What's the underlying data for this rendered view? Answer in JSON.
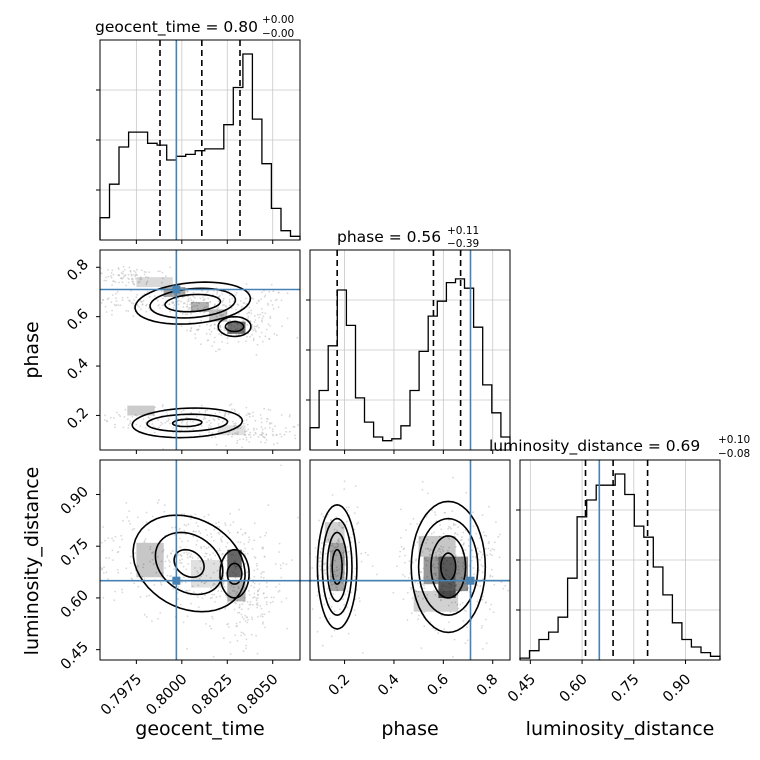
{
  "chart_data": {
    "type": "corner",
    "parameters": [
      "geocent_time",
      "phase",
      "luminosity_distance"
    ],
    "truth_color": "#4682b4",
    "axis_labels": {
      "x": [
        "geocent_time",
        "phase",
        "luminosity_distance"
      ],
      "y": [
        "phase",
        "luminosity_distance"
      ]
    },
    "titles": [
      {
        "param": "geocent_time",
        "prefix": "geocent_time = 0.80",
        "plus": "+0.00",
        "minus": "−0.00"
      },
      {
        "param": "phase",
        "prefix": "phase = 0.56",
        "plus": "+0.11",
        "minus": "−0.39"
      },
      {
        "param": "luminosity_distance",
        "prefix": "luminosity_distance = 0.69",
        "plus": "+0.10",
        "minus": "−0.08"
      }
    ],
    "ticks": {
      "geocent_time": {
        "values": [
          0.7975,
          0.8,
          0.8025,
          0.805
        ],
        "labels": [
          "0.7975",
          "0.8000",
          "0.8025",
          "0.8050"
        ]
      },
      "phase": {
        "values": [
          0.2,
          0.4,
          0.6,
          0.8
        ],
        "labels": [
          "0.2",
          "0.4",
          "0.6",
          "0.8"
        ]
      },
      "luminosity_distance": {
        "values": [
          0.45,
          0.6,
          0.75,
          0.9
        ],
        "labels": [
          "0.45",
          "0.60",
          "0.75",
          "0.90"
        ]
      }
    },
    "ranges": {
      "geocent_time": [
        0.7955,
        0.8065
      ],
      "phase": [
        0.06,
        0.87
      ],
      "luminosity_distance": [
        0.42,
        1.0
      ]
    },
    "truths": {
      "geocent_time": 0.7997,
      "phase": 0.71,
      "luminosity_distance": 0.65
    },
    "quantiles": {
      "geocent_time": [
        0.7988,
        0.8011,
        0.8032
      ],
      "phase": [
        0.17,
        0.56,
        0.67
      ],
      "luminosity_distance": [
        0.61,
        0.69,
        0.79
      ]
    },
    "histograms": {
      "geocent_time": [
        0.12,
        0.3,
        0.5,
        0.58,
        0.58,
        0.52,
        0.51,
        0.43,
        0.45,
        0.46,
        0.48,
        0.49,
        0.49,
        0.62,
        0.82,
        1.0,
        0.65,
        0.41,
        0.17,
        0.05,
        0.02
      ],
      "phase": [
        0.12,
        0.32,
        0.56,
        0.86,
        0.67,
        0.28,
        0.15,
        0.07,
        0.05,
        0.06,
        0.13,
        0.32,
        0.53,
        0.72,
        0.8,
        0.9,
        0.92,
        0.87,
        0.66,
        0.35,
        0.2,
        0.07
      ],
      "luminosity_distance": [
        0.01,
        0.05,
        0.11,
        0.15,
        0.23,
        0.44,
        0.77,
        0.86,
        0.94,
        0.94,
        1.0,
        0.89,
        0.72,
        0.66,
        0.5,
        0.35,
        0.2,
        0.11,
        0.07,
        0.04,
        0.02
      ]
    },
    "grid": true
  }
}
